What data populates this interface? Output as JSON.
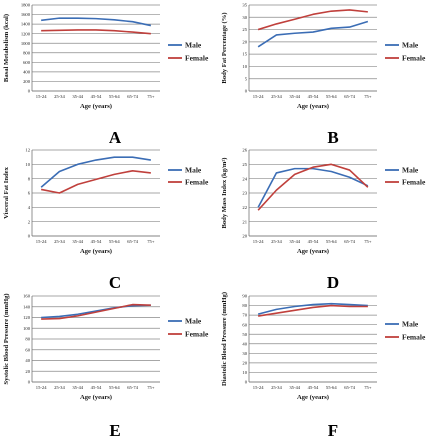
{
  "colors": {
    "male": "#3b6db5",
    "female": "#c0403c",
    "grid": "#8a8a8a",
    "axis": "#777777"
  },
  "chart_data": [
    {
      "id": "A",
      "type": "line",
      "letter": "A",
      "categories": [
        "15-24",
        "25-34",
        "35-44",
        "45-54",
        "55-64",
        "65-74",
        "75+"
      ],
      "xlabel": "Age (years)",
      "ylabel": "Basal Metabolism (kcal)",
      "ylim": [
        0,
        1800
      ],
      "yticks": [
        "0",
        "200",
        "400",
        "600",
        "800",
        "1000",
        "1200",
        "1400",
        "1600",
        "1800"
      ],
      "grid": true,
      "legend_position": "right",
      "series": [
        {
          "name": "Male",
          "color": "#3b6db5",
          "values": [
            1480,
            1525,
            1525,
            1515,
            1490,
            1450,
            1370
          ]
        },
        {
          "name": "Female",
          "color": "#c0403c",
          "values": [
            1262,
            1270,
            1278,
            1278,
            1262,
            1233,
            1200
          ]
        }
      ]
    },
    {
      "id": "B",
      "type": "line",
      "letter": "B",
      "categories": [
        "15-24",
        "25-34",
        "35-44",
        "45-54",
        "55-64",
        "65-74",
        "75+"
      ],
      "xlabel": "Age (years)",
      "ylabel": "Body Fat Percentage (%)",
      "ylim": [
        0,
        35
      ],
      "yticks": [
        "0",
        "5",
        "10",
        "15",
        "20",
        "25",
        "30",
        "35"
      ],
      "grid": true,
      "legend_position": "right",
      "series": [
        {
          "name": "Male",
          "color": "#3b6db5",
          "values": [
            18.0,
            22.8,
            23.5,
            24.0,
            25.5,
            26.0,
            28.3
          ]
        },
        {
          "name": "Female",
          "color": "#c0403c",
          "values": [
            25.0,
            27.3,
            29.2,
            31.2,
            32.5,
            33.0,
            32.2
          ]
        }
      ]
    },
    {
      "id": "C",
      "type": "line",
      "letter": "C",
      "categories": [
        "15-24",
        "25-34",
        "35-44",
        "45-54",
        "55-64",
        "65-74",
        "75+"
      ],
      "xlabel": "Age (years)",
      "ylabel": "Visceral Fat Index",
      "ylim": [
        0,
        12
      ],
      "yticks": [
        "0",
        "2",
        "4",
        "6",
        "8",
        "10",
        "12"
      ],
      "grid": true,
      "legend_position": "right",
      "series": [
        {
          "name": "Male",
          "color": "#3b6db5",
          "values": [
            6.8,
            9.0,
            10.0,
            10.6,
            11.0,
            11.0,
            10.6
          ]
        },
        {
          "name": "Female",
          "color": "#c0403c",
          "values": [
            6.5,
            6.0,
            7.2,
            7.9,
            8.6,
            9.1,
            8.8
          ]
        }
      ]
    },
    {
      "id": "D",
      "type": "line",
      "letter": "D",
      "categories": [
        "15-24",
        "25-34",
        "35-44",
        "45-54",
        "55-64",
        "65-74",
        "75+"
      ],
      "xlabel": "Age (years)",
      "ylabel": "Body Mass Index (kg/m²)",
      "ylim": [
        20,
        26
      ],
      "yticks": [
        "20",
        "21",
        "22",
        "23",
        "24",
        "25",
        "26"
      ],
      "grid": true,
      "legend_position": "right",
      "series": [
        {
          "name": "Male",
          "color": "#3b6db5",
          "values": [
            22.0,
            24.4,
            24.7,
            24.7,
            24.5,
            24.1,
            23.5
          ]
        },
        {
          "name": "Female",
          "color": "#c0403c",
          "values": [
            21.8,
            23.2,
            24.3,
            24.8,
            25.0,
            24.6,
            23.4
          ]
        }
      ]
    },
    {
      "id": "E",
      "type": "line",
      "letter": "E",
      "categories": [
        "15-24",
        "25-34",
        "35-44",
        "45-54",
        "55-64",
        "65-74",
        "75+"
      ],
      "xlabel": "Age (years)",
      "ylabel": "Systolic Blood Pressure (mmHg)",
      "ylim": [
        0,
        160
      ],
      "yticks": [
        "0",
        "20",
        "40",
        "60",
        "80",
        "100",
        "120",
        "140",
        "160"
      ],
      "grid": true,
      "legend_position": "right",
      "series": [
        {
          "name": "Male",
          "color": "#3b6db5",
          "values": [
            120,
            122,
            126,
            132,
            138,
            142,
            143
          ]
        },
        {
          "name": "Female",
          "color": "#c0403c",
          "values": [
            117,
            118,
            123,
            130,
            137,
            144,
            143
          ]
        }
      ]
    },
    {
      "id": "F",
      "type": "line",
      "letter": "F",
      "categories": [
        "15-24",
        "25-34",
        "35-44",
        "45-54",
        "55-64",
        "65-74",
        "75+"
      ],
      "xlabel": "Age (years)",
      "ylabel": "Diastolic Blood Pressure (mmHg)",
      "ylim": [
        0,
        90
      ],
      "yticks": [
        "0",
        "10",
        "20",
        "30",
        "40",
        "50",
        "60",
        "70",
        "80",
        "90"
      ],
      "grid": true,
      "legend_position": "right",
      "series": [
        {
          "name": "Male",
          "color": "#3b6db5",
          "values": [
            71,
            76,
            79,
            81,
            82,
            81,
            80
          ]
        },
        {
          "name": "Female",
          "color": "#c0403c",
          "values": [
            69,
            72,
            75,
            78,
            80,
            79,
            79
          ]
        }
      ]
    }
  ]
}
